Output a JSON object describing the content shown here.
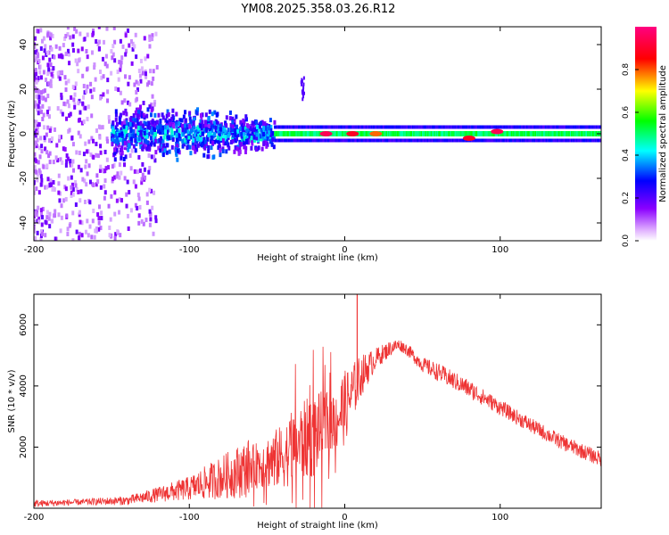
{
  "title": "YM08.2025.358.03.26.R12",
  "chart_data": [
    {
      "type": "heatmap",
      "xlabel": "Height of straight line (km)",
      "ylabel": "Frequency (Hz)",
      "xlim": [
        -200,
        165
      ],
      "ylim": [
        -48,
        48
      ],
      "xticks": [
        -200,
        -100,
        0,
        100
      ],
      "xtick_labels": [
        "-200",
        "-100",
        "0",
        "100"
      ],
      "yticks": [
        -40,
        -20,
        0,
        20,
        40
      ],
      "ytick_labels": [
        "-40",
        "-20",
        "0",
        "20",
        "40"
      ],
      "colorbar": {
        "label": "Normalized spectral amplitude",
        "range": [
          0,
          1
        ],
        "ticks": [
          0.0,
          0.2,
          0.4,
          0.6,
          0.8
        ],
        "tick_labels": [
          "0.0",
          "0.2",
          "0.4",
          "0.6",
          "0.8"
        ],
        "colors": [
          "#ffffff",
          "#8b00ff",
          "#0000ff",
          "#00ffff",
          "#00ff00",
          "#ffff00",
          "#ff0000",
          "#ff0080"
        ]
      },
      "features": [
        {
          "name": "scattered noise",
          "x_range": [
            -200,
            -120
          ],
          "y_range": [
            -48,
            48
          ],
          "amplitude": 0.1
        },
        {
          "name": "dense band",
          "x_range": [
            -150,
            -45
          ],
          "y_range": [
            -12,
            12
          ],
          "amplitude": 0.25
        },
        {
          "name": "narrow line",
          "x_range": [
            -45,
            165
          ],
          "y_center": 0,
          "half_width": 2,
          "amplitude": 0.55
        },
        {
          "name": "short burst",
          "x_range": [
            -28,
            -26
          ],
          "y_range": [
            14,
            26
          ],
          "amplitude": 0.2
        }
      ],
      "peaks": [
        {
          "x": -12,
          "y": 0,
          "amplitude": 0.95
        },
        {
          "x": 5,
          "y": 0,
          "amplitude": 0.9
        },
        {
          "x": 20,
          "y": 0,
          "amplitude": 0.8
        },
        {
          "x": 80,
          "y": -2,
          "amplitude": 0.9
        },
        {
          "x": 98,
          "y": 1,
          "amplitude": 0.95
        }
      ]
    },
    {
      "type": "line",
      "color": "#ee3333",
      "xlabel": "Height of straight line (km)",
      "ylabel": "SNR (10 * v/v)",
      "xlim": [
        -200,
        165
      ],
      "ylim": [
        0,
        7000
      ],
      "xticks": [
        -200,
        -100,
        0,
        100
      ],
      "xtick_labels": [
        "-200",
        "-100",
        "0",
        "100"
      ],
      "yticks": [
        2000,
        4000,
        6000
      ],
      "ytick_labels": [
        "2000",
        "4000",
        "6000"
      ],
      "envelope": {
        "x": [
          -200,
          -170,
          -140,
          -120,
          -100,
          -80,
          -60,
          -40,
          -30,
          -20,
          -10,
          0,
          10,
          20,
          30,
          35,
          40,
          50,
          60,
          80,
          100,
          120,
          140,
          165
        ],
        "mean": [
          150,
          200,
          250,
          450,
          650,
          1000,
          1350,
          1700,
          2100,
          2400,
          2800,
          3300,
          4300,
          4900,
          5250,
          5350,
          5200,
          4700,
          4450,
          3900,
          3300,
          2700,
          2150,
          1600
        ],
        "jitter": [
          120,
          100,
          150,
          250,
          400,
          700,
          1000,
          1500,
          1800,
          2000,
          1500,
          1200,
          700,
          350,
          250,
          200,
          200,
          250,
          300,
          300,
          250,
          250,
          250,
          250
        ]
      },
      "spikes": [
        {
          "x": 8,
          "y": 7000
        }
      ]
    }
  ]
}
